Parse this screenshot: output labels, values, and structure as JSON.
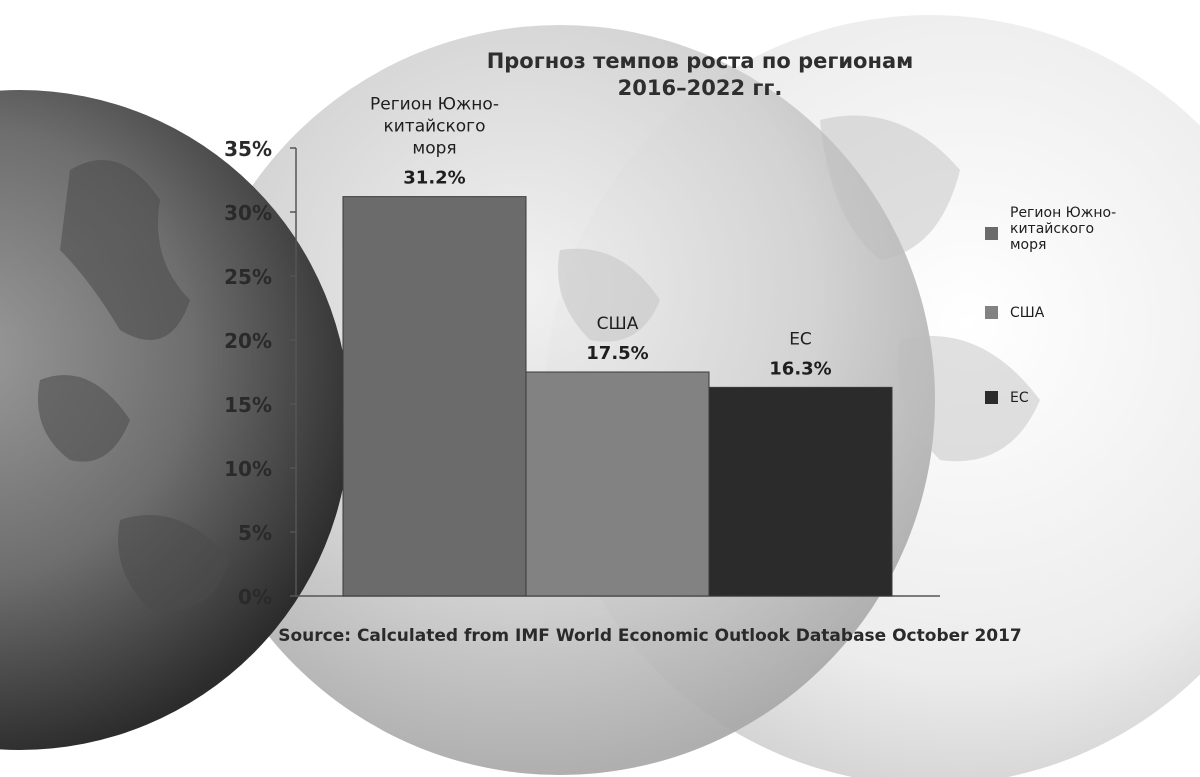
{
  "chart_data": {
    "type": "bar",
    "title_lines": [
      "Прогноз темпов роста по регионам",
      "2016–2022 гг."
    ],
    "categories": [
      "Регион Южно-китайского моря",
      "США",
      "ЕС"
    ],
    "category_label_lines": [
      [
        "Регион Южно-",
        "китайского",
        "моря"
      ],
      [
        "США"
      ],
      [
        "ЕС"
      ]
    ],
    "values": [
      31.2,
      17.5,
      16.3
    ],
    "value_labels": [
      "31.2%",
      "17.5%",
      "16.3%"
    ],
    "colors": [
      "#6b6b6b",
      "#828282",
      "#2b2b2b"
    ],
    "ylim": [
      0,
      35
    ],
    "yticks": [
      0,
      5,
      10,
      15,
      20,
      25,
      30,
      35
    ],
    "ytick_labels": [
      "0%",
      "5%",
      "10%",
      "15%",
      "20%",
      "25%",
      "30%",
      "35%"
    ],
    "xlabel": "",
    "ylabel": "",
    "grid": false,
    "legend": {
      "position": "right",
      "entries": [
        {
          "label_lines": [
            "Регион Южно-",
            "китайского",
            "моря"
          ],
          "color": "#6b6b6b"
        },
        {
          "label_lines": [
            "США"
          ],
          "color": "#828282"
        },
        {
          "label_lines": [
            "ЕС"
          ],
          "color": "#2b2b2b"
        }
      ]
    },
    "source": "Source: Calculated from IMF World Economic Outlook Database October 2017"
  }
}
